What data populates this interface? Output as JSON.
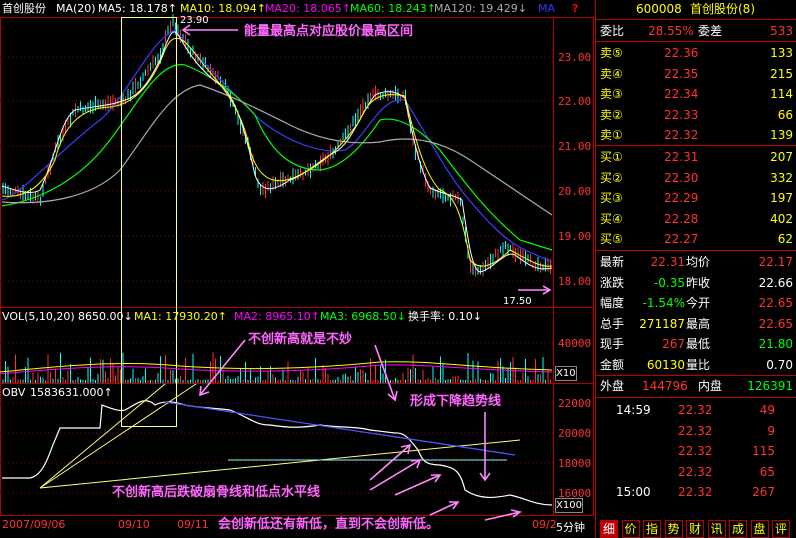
{
  "chart": {
    "title": "首创股份",
    "ma_title": "MA(20)",
    "ma5": "MA5: 18.178↑",
    "ma10": "MA10: 18.094↑",
    "ma20": "MA20: 18.065↑",
    "ma60": "MA60: 18.243↑",
    "ma120": "MA120: 19.429↓",
    "ma_more": "MA",
    "help": "?",
    "price_ticks": [
      "23.00",
      "22.00",
      "21.00",
      "20.00",
      "19.00",
      "18.00"
    ],
    "high_label": "23.90",
    "low_label": "17.50",
    "vol_title": "VOL(5,10,20)",
    "vol_value": "8650.00↓",
    "vol_ma1": "MA1: 17930.20↑",
    "vol_ma2": "MA2: 8965.10↑",
    "vol_ma3": "MA3: 6968.50↓",
    "turnover": "换手率: 0.10↓",
    "vol_tick": "40000",
    "vol_unit": "X10",
    "obv_title": "OBV",
    "obv_value": "1583631.000↑",
    "obv_ticks": [
      "22000",
      "20000",
      "18000",
      "16000"
    ],
    "obv_unit": "X100",
    "dates": [
      "2007/09/06",
      "09/10",
      "09/11",
      "09/2"
    ],
    "period": "5分钟",
    "annotations": {
      "top": "能量最高点对应股价最高区间",
      "no_new_high": "不创新高就是不妙",
      "downtrend": "形成下降趋势线",
      "break": "不创新高后跌破扇骨线和低点水平线",
      "bottom": "会创新低还有新低，直到不会创新低。"
    },
    "colors": {
      "price_up": "#ff3232",
      "price_down": "#00ffff",
      "ma5": "#ffffff",
      "ma10": "#ffff00",
      "ma20": "#ff00ff",
      "ma60": "#00ff00",
      "ma120": "#0000ff",
      "grid": "#b00000"
    }
  },
  "quote": {
    "code": "600008",
    "name": "首创股份(8)",
    "weibi_label": "委比",
    "weibi_value": "28.55%",
    "weicha_label": "委差",
    "weicha_value": "533",
    "sell": [
      {
        "label": "卖⑤",
        "price": "22.36",
        "vol": "133"
      },
      {
        "label": "卖④",
        "price": "22.35",
        "vol": "215"
      },
      {
        "label": "卖③",
        "price": "22.34",
        "vol": "114"
      },
      {
        "label": "卖②",
        "price": "22.33",
        "vol": "66"
      },
      {
        "label": "卖①",
        "price": "22.32",
        "vol": "139"
      }
    ],
    "buy": [
      {
        "label": "买①",
        "price": "22.31",
        "vol": "207"
      },
      {
        "label": "买②",
        "price": "22.30",
        "vol": "332"
      },
      {
        "label": "买③",
        "price": "22.29",
        "vol": "197"
      },
      {
        "label": "买④",
        "price": "22.28",
        "vol": "402"
      },
      {
        "label": "买⑤",
        "price": "22.27",
        "vol": "62"
      }
    ],
    "stats": [
      {
        "l1": "最新",
        "v1": "22.31",
        "l2": "均价",
        "v2": "22.17"
      },
      {
        "l1": "涨跌",
        "v1": "-0.35",
        "l2": "昨收",
        "v2": "22.66"
      },
      {
        "l1": "幅度",
        "v1": "-1.54%",
        "l2": "今开",
        "v2": "22.65"
      },
      {
        "l1": "总手",
        "v1": "271187",
        "l2": "最高",
        "v2": "22.65"
      },
      {
        "l1": "现手",
        "v1": "267",
        "l2": "最低",
        "v2": "21.80"
      },
      {
        "l1": "金额",
        "v1": "60130",
        "l2": "量比",
        "v2": "0.70"
      }
    ],
    "outer_label": "外盘",
    "outer_value": "144796",
    "inner_label": "内盘",
    "inner_value": "126391",
    "ticks": [
      {
        "time": "14:59",
        "price": "22.32",
        "vol": "49"
      },
      {
        "time": "",
        "price": "22.32",
        "vol": "9"
      },
      {
        "time": "",
        "price": "22.32",
        "vol": "115"
      },
      {
        "time": "",
        "price": "22.32",
        "vol": "65"
      },
      {
        "time": "15:00",
        "price": "22.32",
        "vol": "267"
      }
    ],
    "tabs": [
      "细",
      "价",
      "指",
      "势",
      "财",
      "讯",
      "成",
      "盘",
      "评"
    ]
  }
}
